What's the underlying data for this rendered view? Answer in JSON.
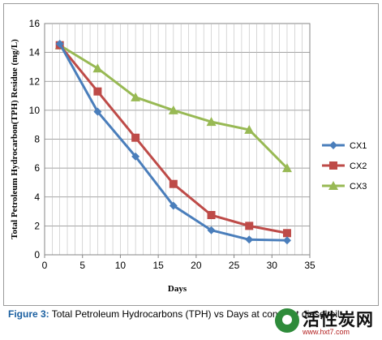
{
  "chart_data": {
    "type": "line",
    "xlabel": "Days",
    "ylabel": "Total Petroleum Hydrocarbon(TPH) Residue (mg/L)",
    "xlim": [
      0,
      35
    ],
    "ylim": [
      0,
      16
    ],
    "xticks": [
      0,
      5,
      10,
      15,
      20,
      25,
      30,
      35
    ],
    "yticks": [
      0,
      2,
      4,
      6,
      8,
      10,
      12,
      14,
      16
    ],
    "grid": true,
    "legend_position": "right",
    "x": [
      2,
      7,
      12,
      17,
      22,
      27,
      32
    ],
    "series": [
      {
        "name": "CX1",
        "color": "#4a7ebb",
        "marker": "diamond",
        "values": [
          14.6,
          9.9,
          6.8,
          3.4,
          1.7,
          1.05,
          1.0
        ]
      },
      {
        "name": "CX2",
        "color": "#be4b48",
        "marker": "square",
        "values": [
          14.5,
          11.3,
          8.1,
          4.9,
          2.75,
          2.0,
          1.5
        ]
      },
      {
        "name": "CX3",
        "color": "#98b954",
        "marker": "triangle",
        "values": [
          14.5,
          12.9,
          10.9,
          10.0,
          9.2,
          8.65,
          6.0
        ]
      }
    ]
  },
  "caption": {
    "label": "Figure 3:",
    "text": " Total Petroleum Hydrocarbons (TPH) vs Days at constant diesel oil."
  },
  "watermark": {
    "title": "活性炭网",
    "url": "www.hxt7.com"
  }
}
